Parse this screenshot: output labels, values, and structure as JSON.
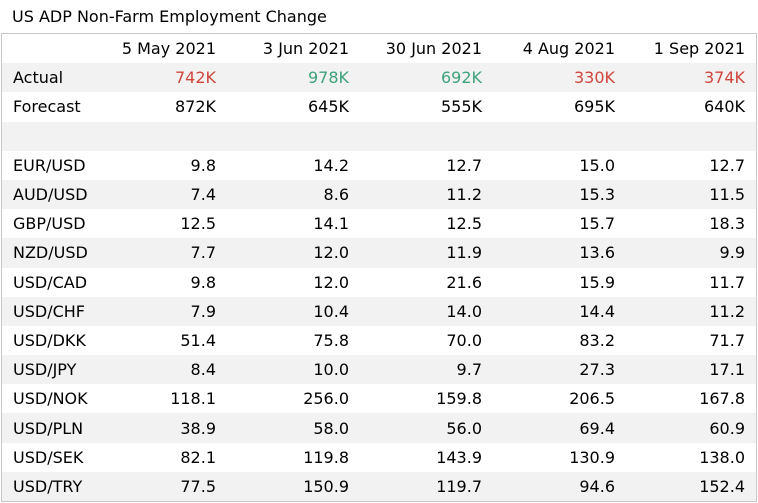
{
  "title": "US ADP Non-Farm Employment Change",
  "header": [
    "",
    "5 May 2021",
    "3 Jun 2021",
    "30 Jun 2021",
    "4 Aug 2021",
    "1 Sep 2021"
  ],
  "actual": {
    "label": "Actual",
    "values": [
      "742K",
      "978K",
      "692K",
      "330K",
      "374K"
    ],
    "colors": [
      "red",
      "green",
      "green",
      "red",
      "red"
    ]
  },
  "forecast": {
    "label": "Forecast",
    "values": [
      "872K",
      "645K",
      "555K",
      "695K",
      "640K"
    ]
  },
  "pairs": [
    {
      "label": "EUR/USD",
      "values": [
        "9.8",
        "14.2",
        "12.7",
        "15.0",
        "12.7"
      ]
    },
    {
      "label": "AUD/USD",
      "values": [
        "7.4",
        "8.6",
        "11.2",
        "15.3",
        "11.5"
      ]
    },
    {
      "label": "GBP/USD",
      "values": [
        "12.5",
        "14.1",
        "12.5",
        "15.7",
        "18.3"
      ]
    },
    {
      "label": "NZD/USD",
      "values": [
        "7.7",
        "12.0",
        "11.9",
        "13.6",
        "9.9"
      ]
    },
    {
      "label": "USD/CAD",
      "values": [
        "9.8",
        "12.0",
        "21.6",
        "15.9",
        "11.7"
      ]
    },
    {
      "label": "USD/CHF",
      "values": [
        "7.9",
        "10.4",
        "14.0",
        "14.4",
        "11.2"
      ]
    },
    {
      "label": "USD/DKK",
      "values": [
        "51.4",
        "75.8",
        "70.0",
        "83.2",
        "71.7"
      ]
    },
    {
      "label": "USD/JPY",
      "values": [
        "8.4",
        "10.0",
        "9.7",
        "27.3",
        "17.1"
      ]
    },
    {
      "label": "USD/NOK",
      "values": [
        "118.1",
        "256.0",
        "159.8",
        "206.5",
        "167.8"
      ]
    },
    {
      "label": "USD/PLN",
      "values": [
        "38.9",
        "58.0",
        "56.0",
        "69.4",
        "60.9"
      ]
    },
    {
      "label": "USD/SEK",
      "values": [
        "82.1",
        "119.8",
        "143.9",
        "130.9",
        "138.0"
      ]
    },
    {
      "label": "USD/TRY",
      "values": [
        "77.5",
        "150.9",
        "119.7",
        "94.6",
        "152.4"
      ]
    }
  ]
}
